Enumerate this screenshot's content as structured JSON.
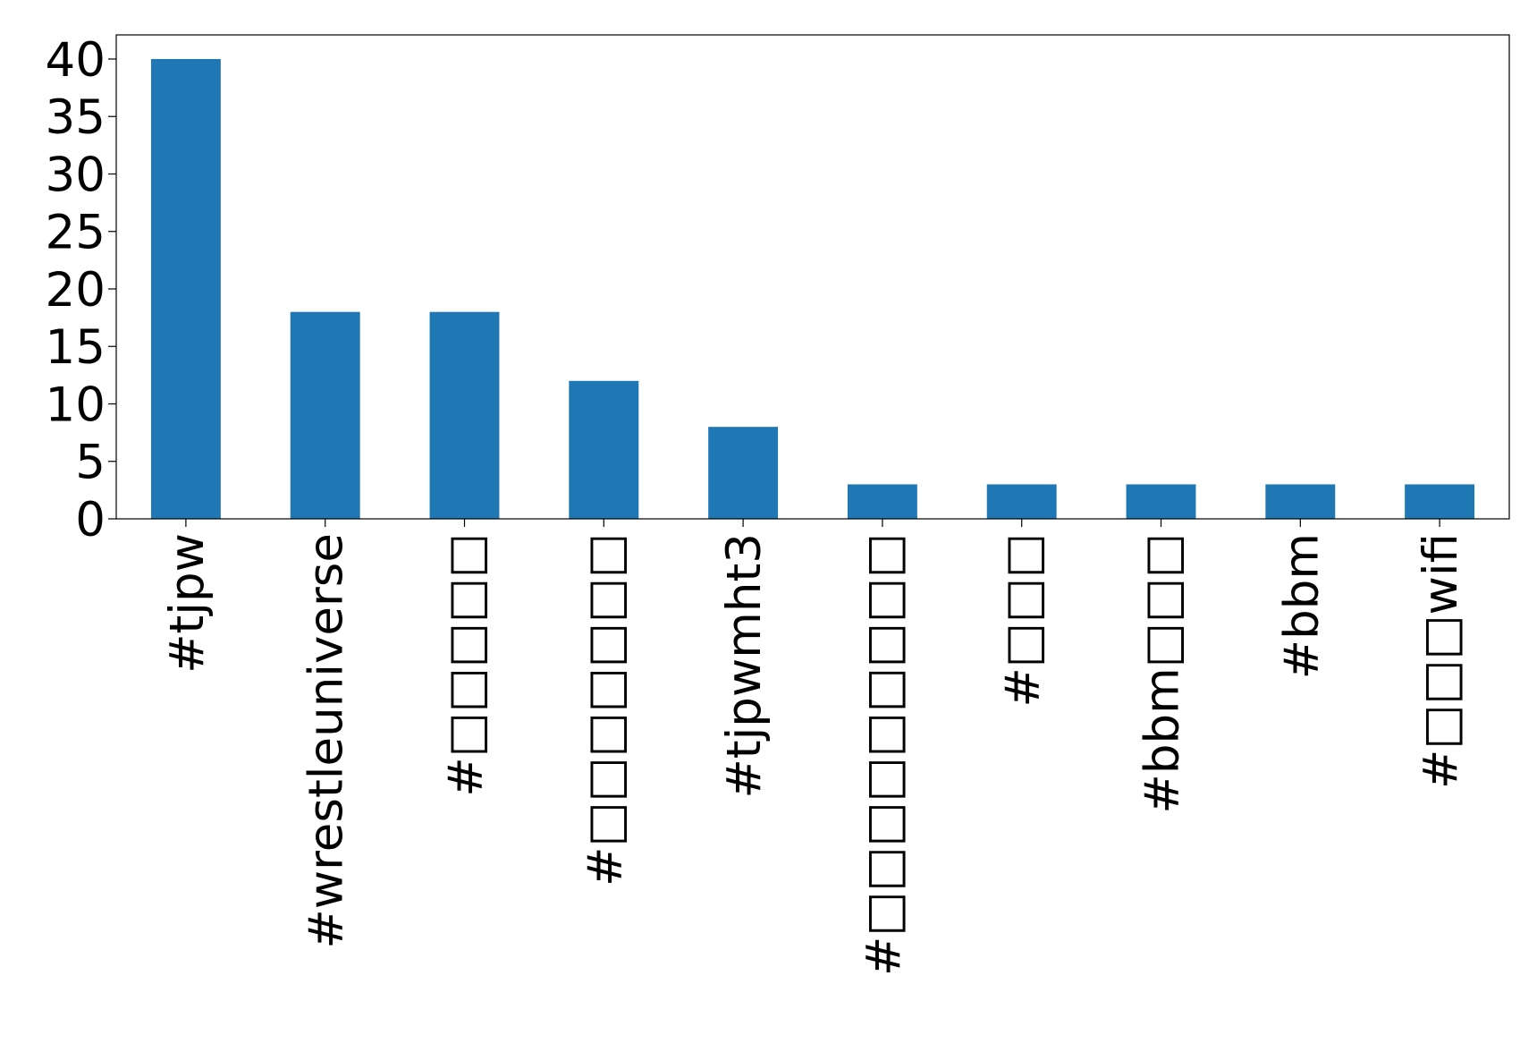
{
  "chart_data": {
    "type": "bar",
    "categories": [
      "#tjpw",
      "#wrestleuniverse",
      "#□□□□□",
      "#□□□□□□□",
      "#tjpwmht3",
      "#□□□□□□□□□",
      "#□□□",
      "#bbm□□□",
      "#bbm",
      "#□□□wifi"
    ],
    "values": [
      40,
      18,
      18,
      12,
      8,
      3,
      3,
      3,
      3,
      3
    ],
    "color": "#1f77b4",
    "ylim": [
      0,
      42.1
    ],
    "yticks": [
      0,
      5,
      10,
      15,
      20,
      25,
      30,
      35,
      40
    ],
    "grid": false
  }
}
